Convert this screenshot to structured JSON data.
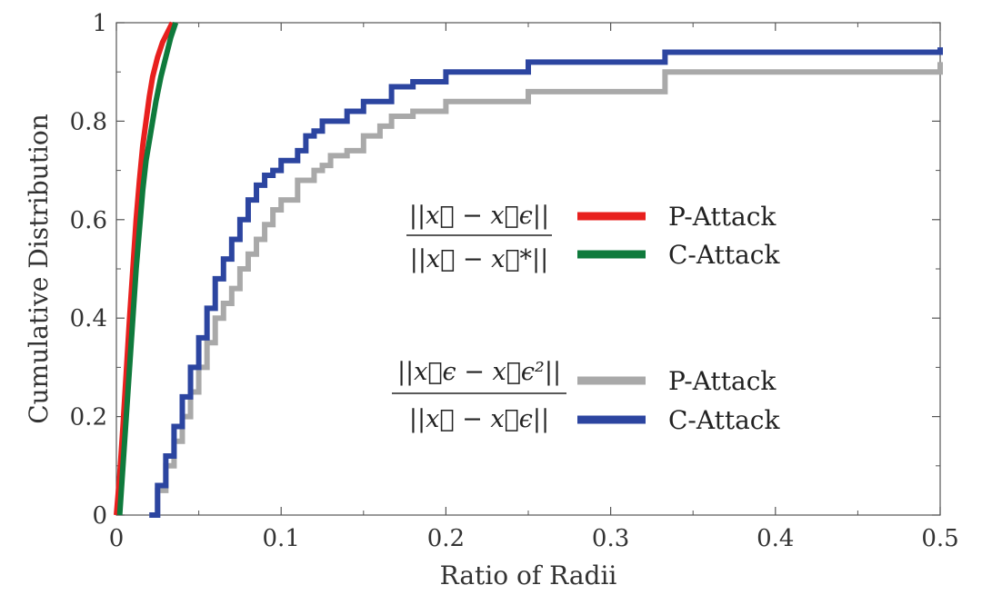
{
  "chart_data": {
    "type": "line",
    "xlabel": "Ratio of Radii",
    "ylabel": "Cumulative Distribution",
    "xlim": [
      0,
      0.5
    ],
    "ylim": [
      0,
      1
    ],
    "x_ticks": [
      0,
      0.1,
      0.2,
      0.3,
      0.4,
      0.5
    ],
    "x_tick_labels": [
      "0",
      "0.1",
      "0.2",
      "0.3",
      "0.4",
      "0.5"
    ],
    "y_ticks": [
      0,
      0.2,
      0.4,
      0.6,
      0.8,
      1
    ],
    "y_tick_labels": [
      "0",
      "0.2",
      "0.4",
      "0.6",
      "0.8",
      "1"
    ],
    "grid": false,
    "legend_groups": [
      {
        "formula_numerator": "||x⃗ − x⃗ϵ||",
        "formula_denominator": "||x⃗ − x⃗*||",
        "entries": [
          {
            "label": "P-Attack",
            "color": "#e8201e"
          },
          {
            "label": "C-Attack",
            "color": "#0f7a3c"
          }
        ]
      },
      {
        "formula_numerator": "||x⃗ϵ − x⃗ϵ²||",
        "formula_denominator": "||x⃗ − x⃗ϵ||",
        "entries": [
          {
            "label": "P-Attack",
            "color": "#a9a9a9"
          },
          {
            "label": "C-Attack",
            "color": "#2c45a0"
          }
        ]
      }
    ],
    "series": [
      {
        "color": "#e8201e",
        "step": false,
        "points": [
          [
            0.0,
            0.0
          ],
          [
            0.002,
            0.08
          ],
          [
            0.004,
            0.18
          ],
          [
            0.006,
            0.29
          ],
          [
            0.008,
            0.4
          ],
          [
            0.01,
            0.5
          ],
          [
            0.012,
            0.6
          ],
          [
            0.014,
            0.68
          ],
          [
            0.016,
            0.75
          ],
          [
            0.018,
            0.8
          ],
          [
            0.02,
            0.85
          ],
          [
            0.022,
            0.89
          ],
          [
            0.025,
            0.93
          ],
          [
            0.028,
            0.96
          ],
          [
            0.031,
            0.98
          ],
          [
            0.034,
            1.0
          ]
        ]
      },
      {
        "color": "#0f7a3c",
        "step": false,
        "points": [
          [
            0.002,
            0.0
          ],
          [
            0.004,
            0.1
          ],
          [
            0.006,
            0.2
          ],
          [
            0.008,
            0.3
          ],
          [
            0.01,
            0.4
          ],
          [
            0.012,
            0.5
          ],
          [
            0.014,
            0.58
          ],
          [
            0.016,
            0.66
          ],
          [
            0.018,
            0.72
          ],
          [
            0.021,
            0.78
          ],
          [
            0.024,
            0.84
          ],
          [
            0.027,
            0.89
          ],
          [
            0.03,
            0.93
          ],
          [
            0.033,
            0.97
          ],
          [
            0.036,
            1.0
          ]
        ]
      },
      {
        "color": "#a9a9a9",
        "step": true,
        "points": [
          [
            0.02,
            0.0
          ],
          [
            0.025,
            0.05
          ],
          [
            0.03,
            0.1
          ],
          [
            0.035,
            0.15
          ],
          [
            0.04,
            0.2
          ],
          [
            0.045,
            0.25
          ],
          [
            0.05,
            0.3
          ],
          [
            0.055,
            0.35
          ],
          [
            0.06,
            0.4
          ],
          [
            0.065,
            0.43
          ],
          [
            0.07,
            0.46
          ],
          [
            0.075,
            0.5
          ],
          [
            0.08,
            0.53
          ],
          [
            0.085,
            0.56
          ],
          [
            0.09,
            0.59
          ],
          [
            0.095,
            0.62
          ],
          [
            0.1,
            0.64
          ],
          [
            0.11,
            0.68
          ],
          [
            0.12,
            0.7
          ],
          [
            0.125,
            0.71
          ],
          [
            0.13,
            0.73
          ],
          [
            0.14,
            0.74
          ],
          [
            0.15,
            0.77
          ],
          [
            0.16,
            0.79
          ],
          [
            0.167,
            0.81
          ],
          [
            0.18,
            0.82
          ],
          [
            0.2,
            0.84
          ],
          [
            0.25,
            0.86
          ],
          [
            0.333,
            0.9
          ],
          [
            0.5,
            0.92
          ]
        ]
      },
      {
        "color": "#2c45a0",
        "step": true,
        "points": [
          [
            0.02,
            0.0
          ],
          [
            0.025,
            0.06
          ],
          [
            0.03,
            0.12
          ],
          [
            0.035,
            0.18
          ],
          [
            0.04,
            0.24
          ],
          [
            0.045,
            0.3
          ],
          [
            0.05,
            0.36
          ],
          [
            0.055,
            0.42
          ],
          [
            0.06,
            0.48
          ],
          [
            0.065,
            0.52
          ],
          [
            0.07,
            0.56
          ],
          [
            0.075,
            0.6
          ],
          [
            0.08,
            0.64
          ],
          [
            0.085,
            0.67
          ],
          [
            0.09,
            0.69
          ],
          [
            0.095,
            0.7
          ],
          [
            0.1,
            0.72
          ],
          [
            0.11,
            0.74
          ],
          [
            0.115,
            0.77
          ],
          [
            0.12,
            0.78
          ],
          [
            0.125,
            0.8
          ],
          [
            0.14,
            0.82
          ],
          [
            0.15,
            0.84
          ],
          [
            0.167,
            0.87
          ],
          [
            0.18,
            0.88
          ],
          [
            0.2,
            0.9
          ],
          [
            0.25,
            0.92
          ],
          [
            0.333,
            0.94
          ],
          [
            0.5,
            0.95
          ]
        ]
      }
    ]
  }
}
